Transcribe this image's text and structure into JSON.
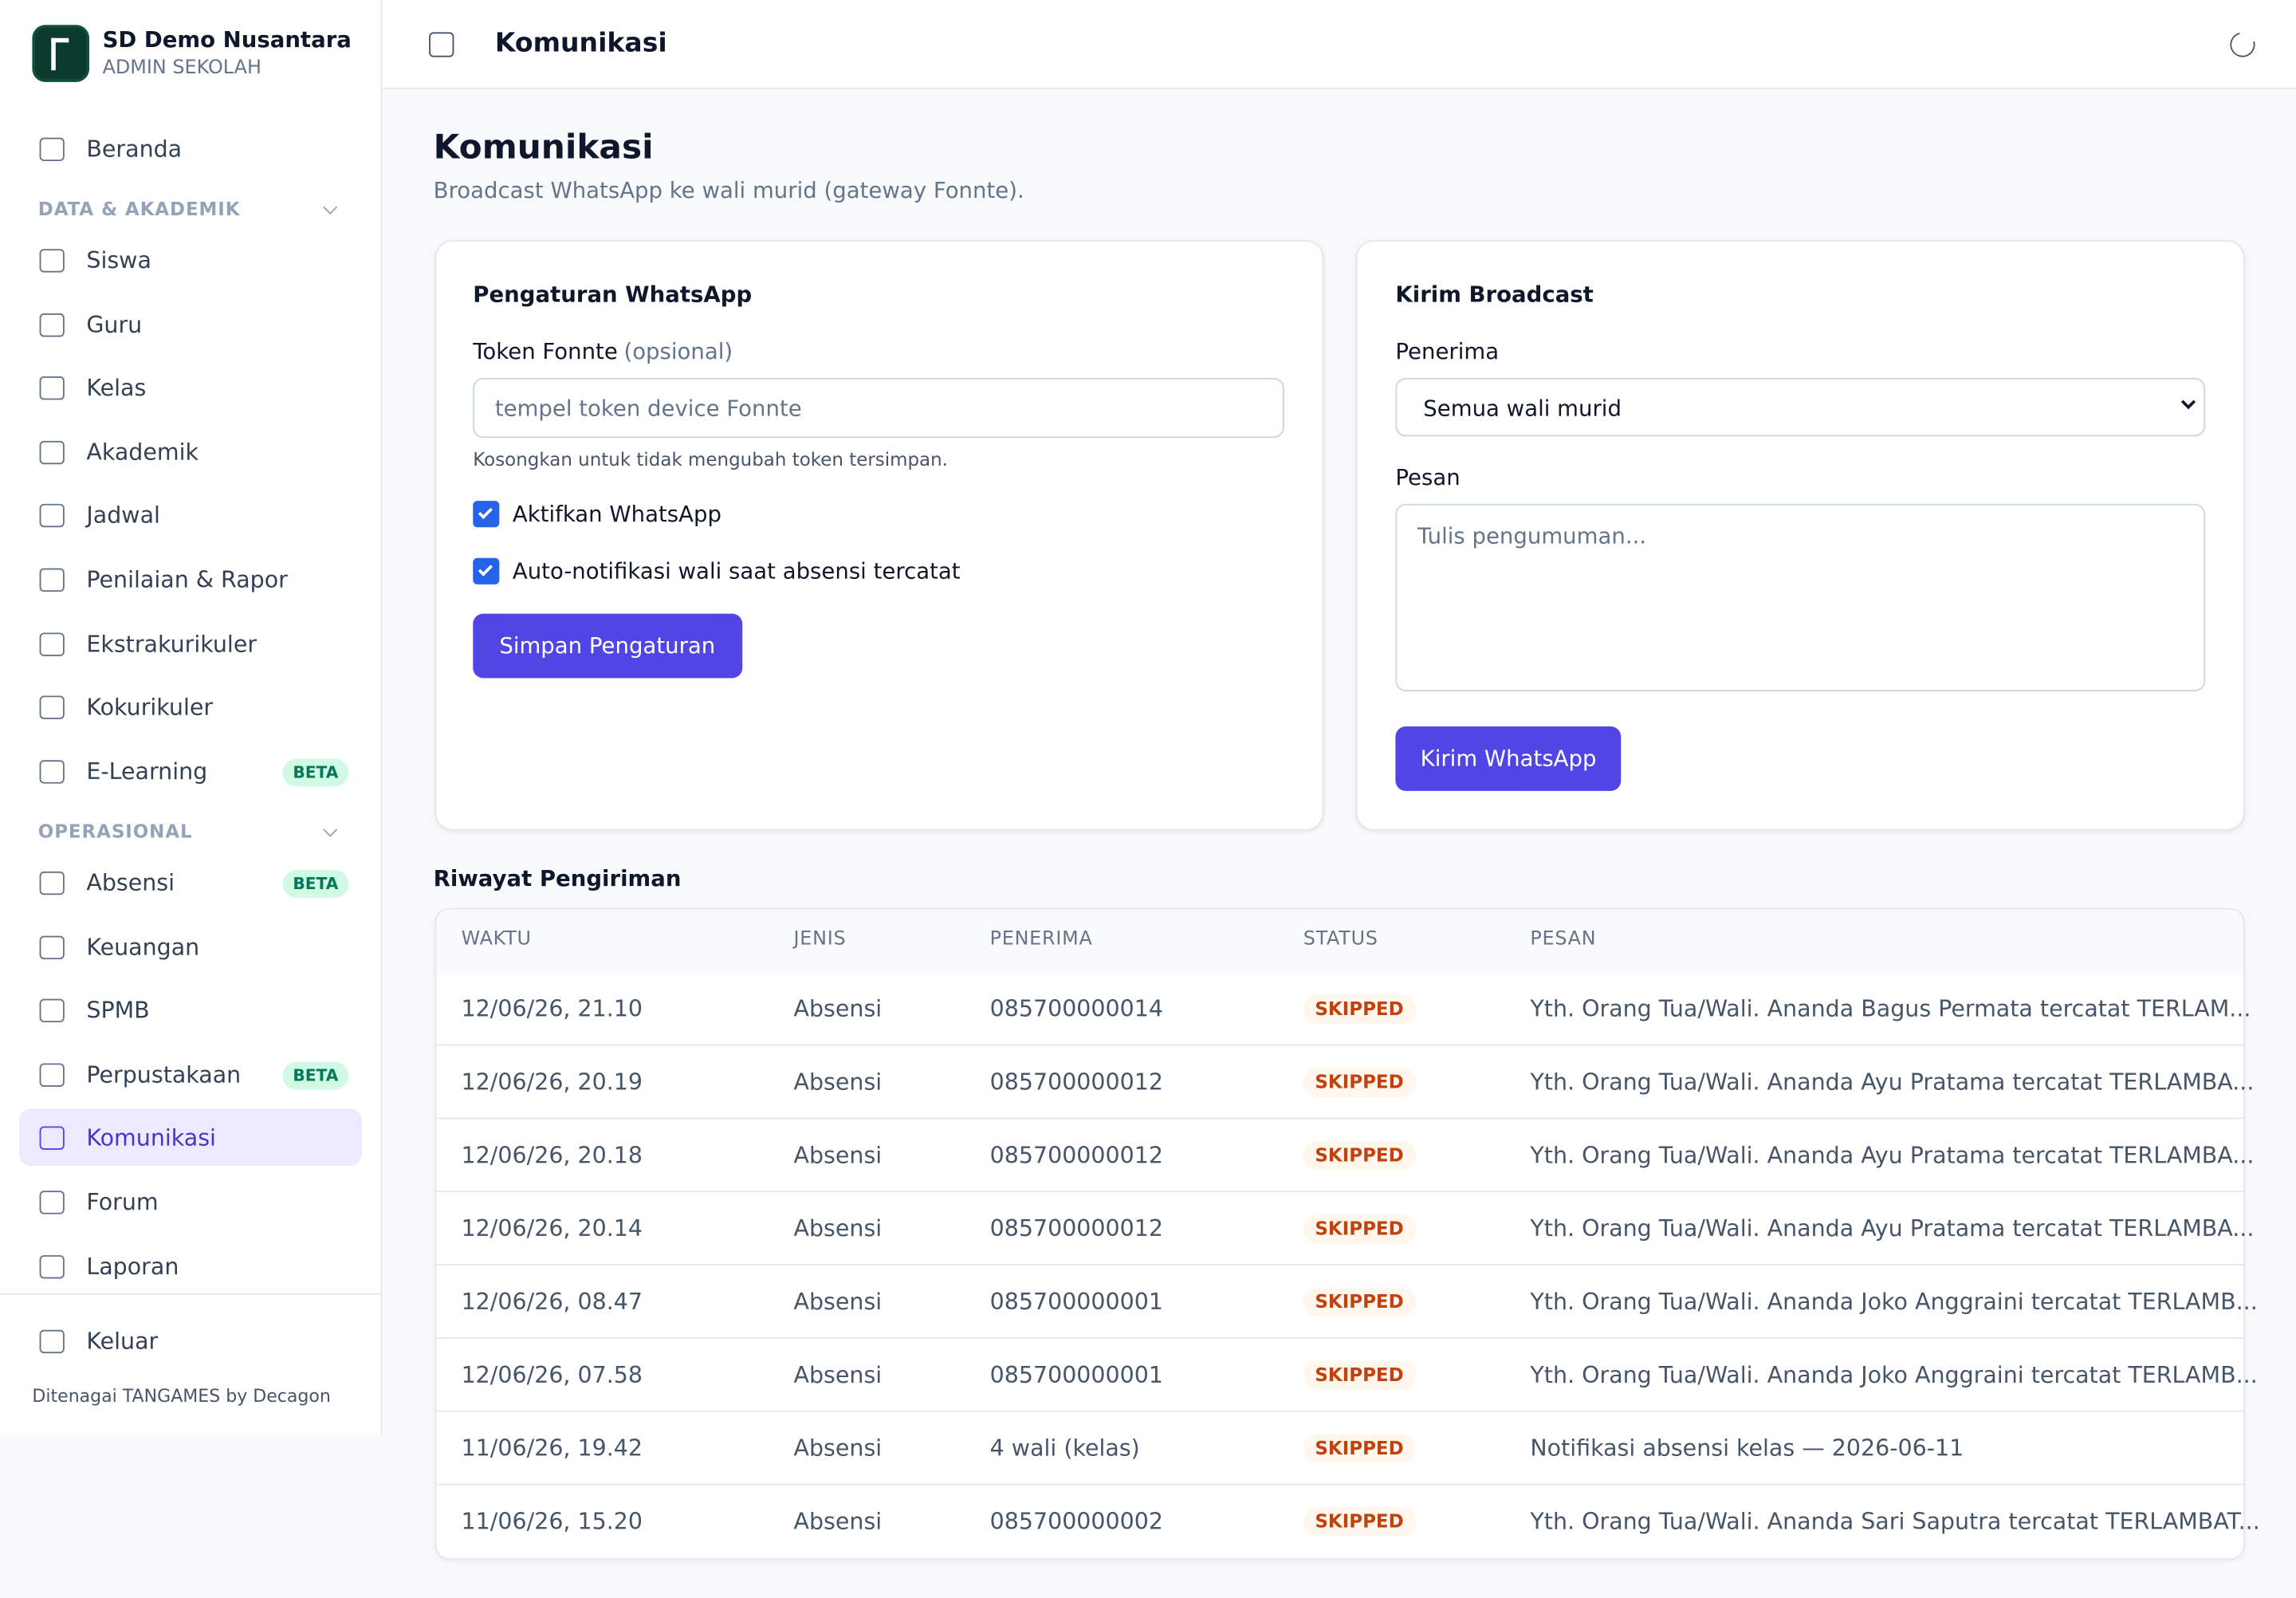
{
  "sidebar": {
    "school": "SD Demo Nusantara",
    "role": "ADMIN SEKOLAH",
    "home": "Beranda",
    "groups": [
      {
        "title": "DATA & AKADEMIK",
        "items": [
          {
            "label": "Siswa"
          },
          {
            "label": "Guru"
          },
          {
            "label": "Kelas"
          },
          {
            "label": "Akademik"
          },
          {
            "label": "Jadwal"
          },
          {
            "label": "Penilaian & Rapor"
          },
          {
            "label": "Ekstrakurikuler"
          },
          {
            "label": "Kokurikuler"
          },
          {
            "label": "E-Learning",
            "badge": "BETA"
          }
        ]
      },
      {
        "title": "OPERASIONAL",
        "items": [
          {
            "label": "Absensi",
            "badge": "BETA"
          },
          {
            "label": "Keuangan"
          },
          {
            "label": "SPMB"
          },
          {
            "label": "Perpustakaan",
            "badge": "BETA"
          },
          {
            "label": "Komunikasi",
            "active": true
          },
          {
            "label": "Forum"
          },
          {
            "label": "Laporan"
          }
        ]
      }
    ],
    "logout": "Keluar",
    "footer": "Ditenagai TANGAMES by Decagon"
  },
  "header": {
    "title": "Komunikasi"
  },
  "page": {
    "title": "Komunikasi",
    "subtitle": "Broadcast WhatsApp ke wali murid (gateway Fonnte)."
  },
  "settings_card": {
    "title": "Pengaturan WhatsApp",
    "token_label": "Token Fonnte",
    "token_hint": "(opsional)",
    "token_placeholder": "tempel token device Fonnte",
    "token_help": "Kosongkan untuk tidak mengubah token tersimpan.",
    "checkboxes": [
      "Aktifkan WhatsApp",
      "Auto-notifikasi wali saat absensi tercatat"
    ],
    "button": "Simpan Pengaturan"
  },
  "broadcast_card": {
    "title": "Kirim Broadcast",
    "recipient_label": "Penerima",
    "recipient_value": "Semua wali murid",
    "message_label": "Pesan",
    "message_placeholder": "Tulis pengumuman...",
    "button": "Kirim WhatsApp"
  },
  "history": {
    "title": "Riwayat Pengiriman",
    "columns": [
      "WAKTU",
      "JENIS",
      "PENERIMA",
      "STATUS",
      "PESAN"
    ],
    "rows": [
      [
        "12/06/26, 21.10",
        "Absensi",
        "085700000014",
        "SKIPPED",
        "Yth. Orang Tua/Wali. Ananda Bagus Permata tercatat TERLAM..."
      ],
      [
        "12/06/26, 20.19",
        "Absensi",
        "085700000012",
        "SKIPPED",
        "Yth. Orang Tua/Wali. Ananda Ayu Pratama tercatat TERLAMBA..."
      ],
      [
        "12/06/26, 20.18",
        "Absensi",
        "085700000012",
        "SKIPPED",
        "Yth. Orang Tua/Wali. Ananda Ayu Pratama tercatat TERLAMBA..."
      ],
      [
        "12/06/26, 20.14",
        "Absensi",
        "085700000012",
        "SKIPPED",
        "Yth. Orang Tua/Wali. Ananda Ayu Pratama tercatat TERLAMBA..."
      ],
      [
        "12/06/26, 08.47",
        "Absensi",
        "085700000001",
        "SKIPPED",
        "Yth. Orang Tua/Wali. Ananda Joko Anggraini tercatat TERLAMB..."
      ],
      [
        "12/06/26, 07.58",
        "Absensi",
        "085700000001",
        "SKIPPED",
        "Yth. Orang Tua/Wali. Ananda Joko Anggraini tercatat TERLAMB..."
      ],
      [
        "11/06/26, 19.42",
        "Absensi",
        "4 wali (kelas)",
        "SKIPPED",
        "Notifikasi absensi kelas — 2026-06-11"
      ],
      [
        "11/06/26, 15.20",
        "Absensi",
        "085700000002",
        "SKIPPED",
        "Yth. Orang Tua/Wali. Ananda Sari Saputra tercatat TERLAMBAT..."
      ]
    ]
  }
}
